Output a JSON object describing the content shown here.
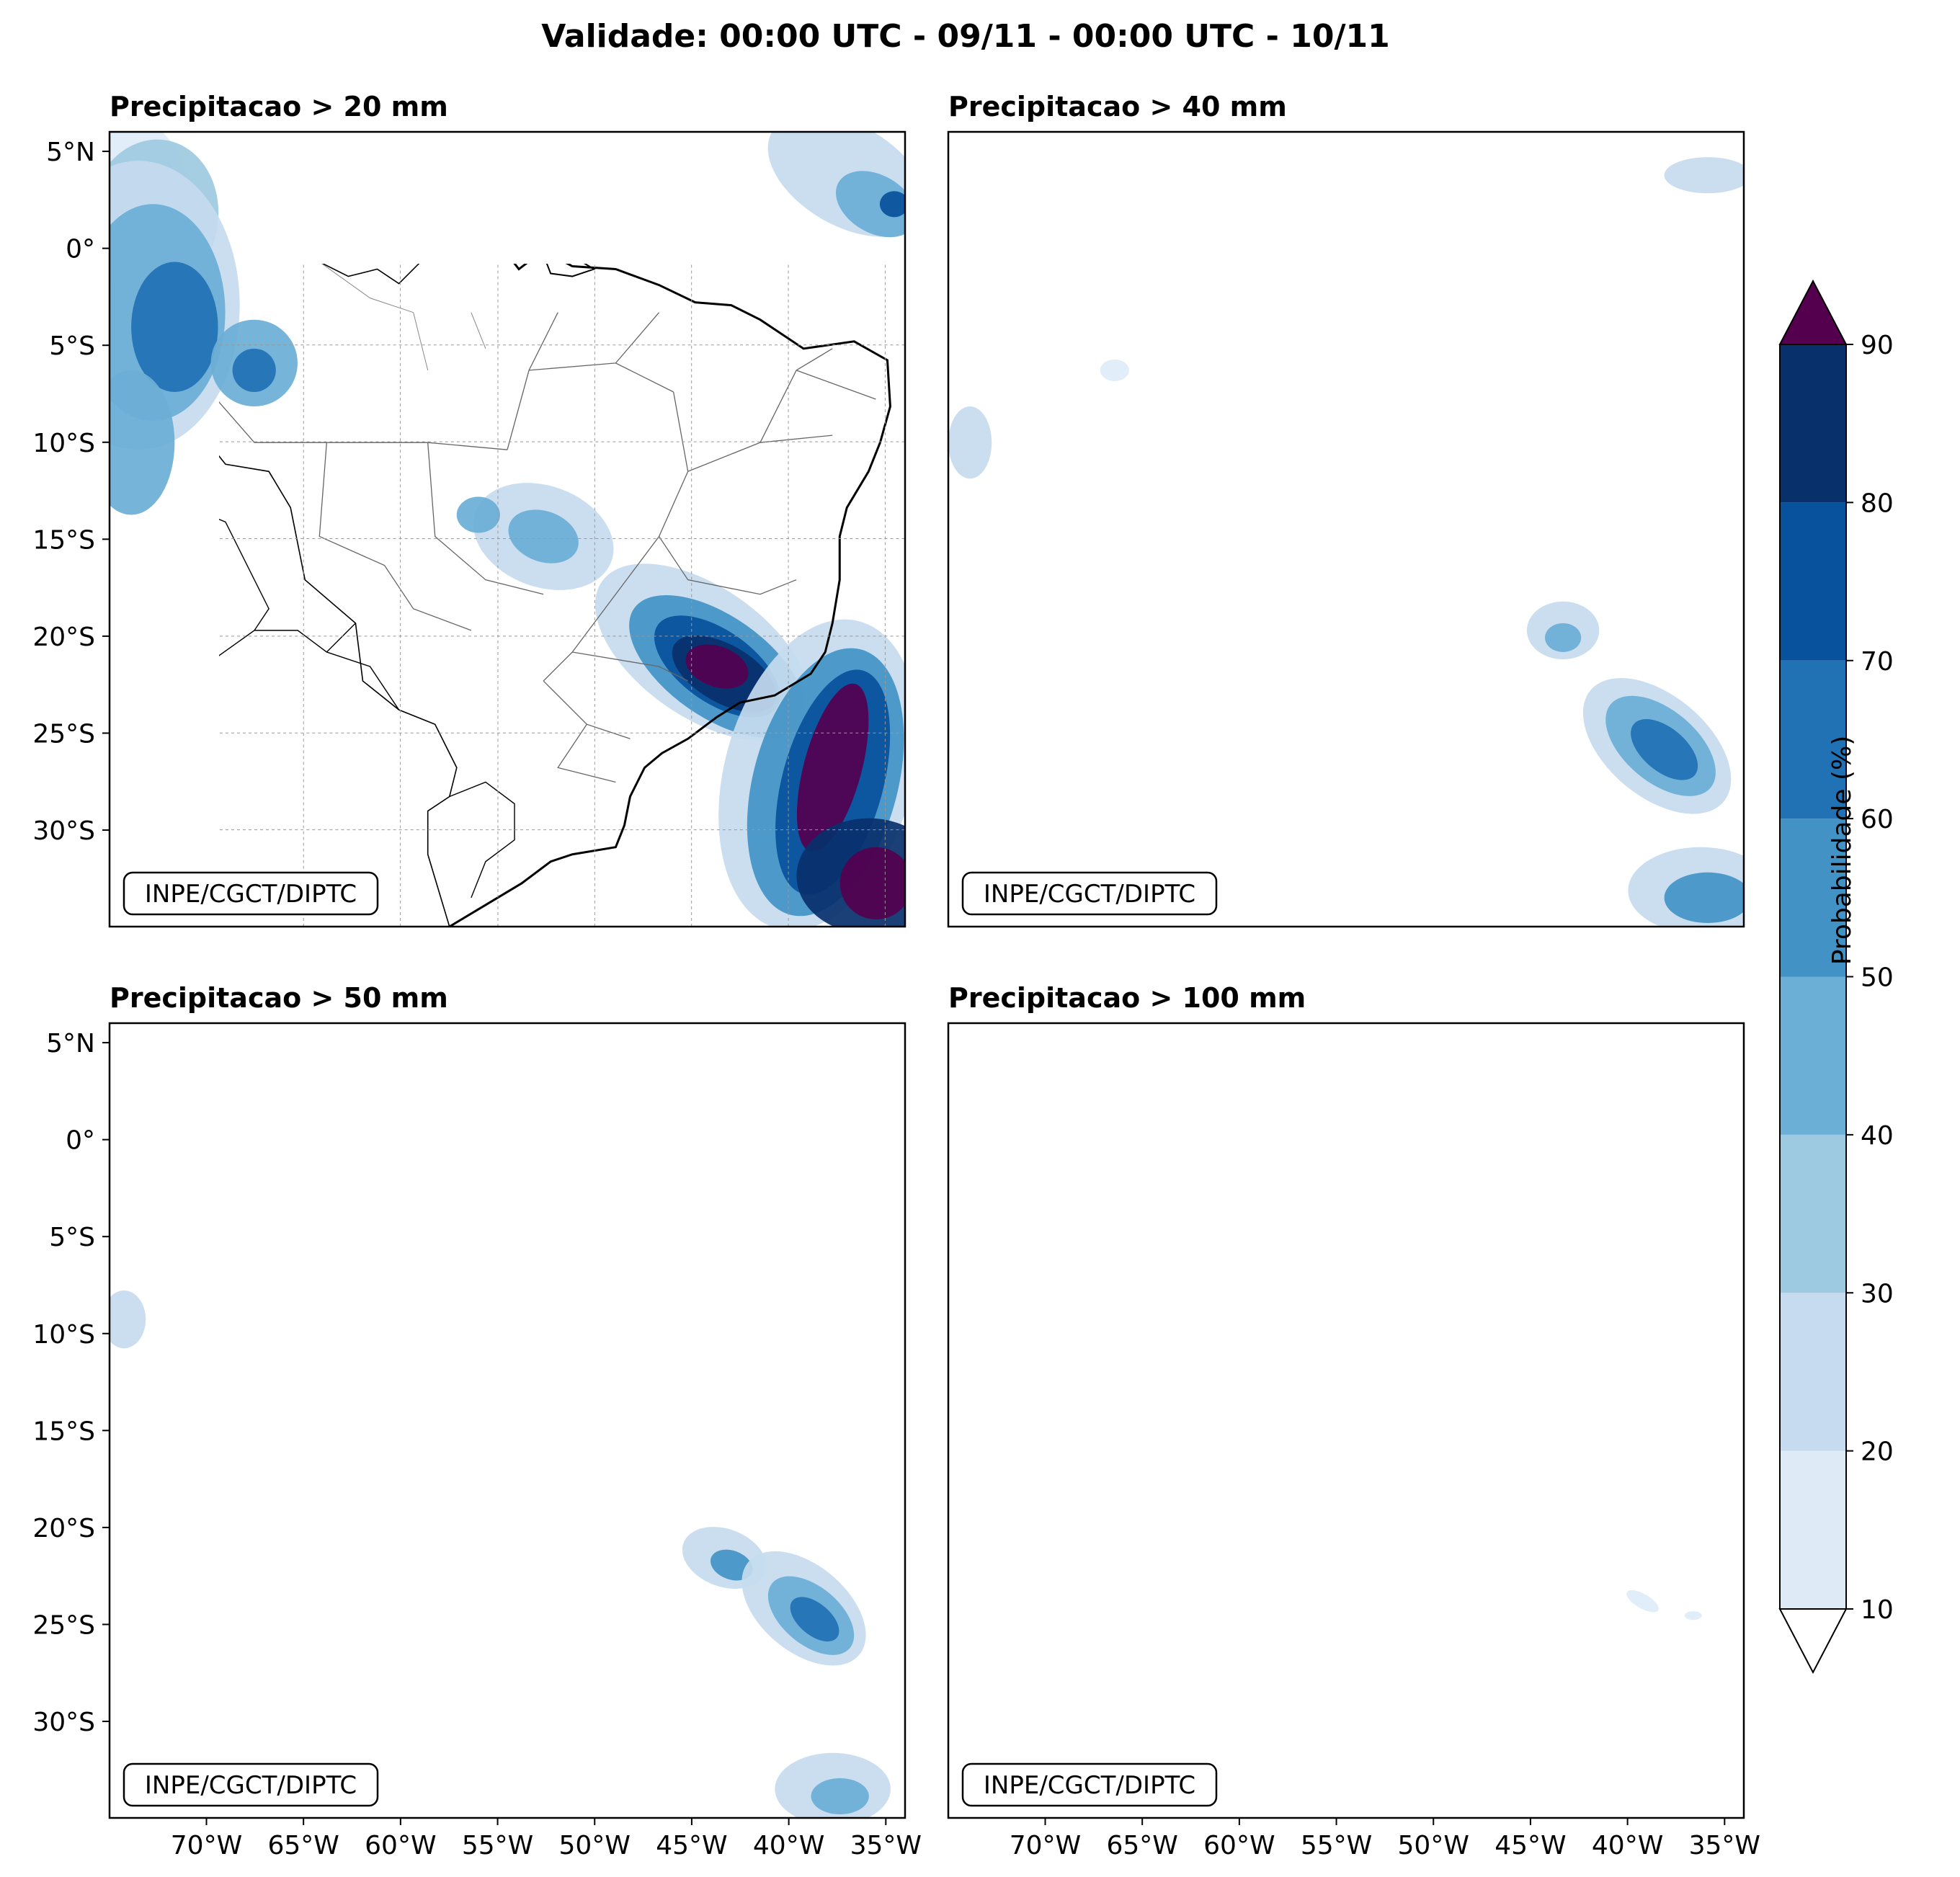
{
  "title": "Validade: 00:00 UTC - 09/11 - 00:00 UTC - 10/11",
  "panels": [
    {
      "title": "Precipitacao > 20 mm",
      "credit": "INPE/CGCT/DIPTC",
      "intensity": "high"
    },
    {
      "title": "Precipitacao > 40 mm",
      "credit": "INPE/CGCT/DIPTC",
      "intensity": "medium"
    },
    {
      "title": "Precipitacao > 50 mm",
      "credit": "INPE/CGCT/DIPTC",
      "intensity": "low"
    },
    {
      "title": "Precipitacao > 100 mm",
      "credit": "INPE/CGCT/DIPTC",
      "intensity": "minimal"
    }
  ],
  "lat_ticks": [
    "5°N",
    "0°",
    "5°S",
    "10°S",
    "15°S",
    "20°S",
    "25°S",
    "30°S"
  ],
  "lon_ticks": [
    "70°W",
    "65°W",
    "60°W",
    "55°W",
    "50°W",
    "45°W",
    "40°W",
    "35°W"
  ],
  "colorbar": {
    "label": "Probabilidade (%)",
    "ticks": [
      "10",
      "20",
      "30",
      "40",
      "50",
      "60",
      "70",
      "80",
      "90"
    ],
    "colors": [
      "#deebf7",
      "#c6dbef",
      "#9ecae1",
      "#6baed6",
      "#4292c6",
      "#2171b5",
      "#08519c",
      "#08306b"
    ],
    "over_color": "#54004f",
    "under_color": "#ffffff"
  }
}
